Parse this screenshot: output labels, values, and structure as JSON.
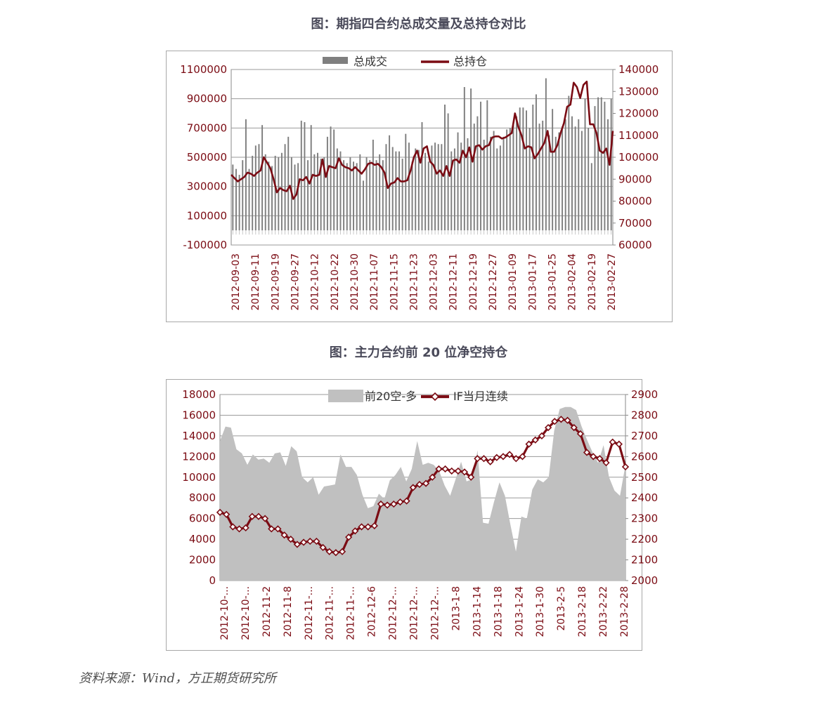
{
  "titles": {
    "chart1": "图：期指四合约总成交量及总持仓对比",
    "chart2": "图：主力合约前 20 位净空持仓"
  },
  "source": "资料来源：Wind，方正期货研究所",
  "colors": {
    "dark_red": "#7b0c14",
    "volume_bar": "#7f7f7f",
    "net_short_area": "#c0c0c0",
    "axis_text": "#7b0c14",
    "title_text": "#4a4a5a"
  },
  "chart_data": [
    {
      "type": "bar",
      "title": "图：期指四合约总成交量及总持仓对比",
      "legend_position": "top",
      "grid": true,
      "left_axis": {
        "ylim": [
          -100000,
          1100000
        ],
        "ticks": [
          "-100000",
          "100000",
          "300000",
          "500000",
          "700000",
          "900000",
          "1100000"
        ]
      },
      "right_axis": {
        "ylim": [
          60000,
          140000
        ],
        "ticks": [
          "60000",
          "70000",
          "80000",
          "90000",
          "100000",
          "110000",
          "120000",
          "130000",
          "140000"
        ]
      },
      "x_tick_labels": [
        "2012-09-03",
        "2012-09-11",
        "2012-09-19",
        "2012-09-27",
        "2012-10-12",
        "2012-10-22",
        "2012-10-30",
        "2012-11-07",
        "2012-11-15",
        "2012-11-23",
        "2012-12-03",
        "2012-12-11",
        "2012-12-19",
        "2012-12-27",
        "2013-01-09",
        "2013-01-17",
        "2013-01-25",
        "2013-02-04",
        "2013-02-19",
        "2013-02-27"
      ],
      "series": [
        {
          "name": "总成交",
          "type": "bar",
          "axis": "left",
          "values": [
            450000,
            420000,
            380000,
            480000,
            760000,
            420000,
            510000,
            580000,
            590000,
            720000,
            520000,
            470000,
            440000,
            510000,
            500000,
            530000,
            590000,
            640000,
            500000,
            450000,
            460000,
            750000,
            740000,
            480000,
            720000,
            520000,
            530000,
            490000,
            500000,
            640000,
            710000,
            690000,
            560000,
            540000,
            480000,
            460000,
            500000,
            470000,
            460000,
            520000,
            340000,
            500000,
            480000,
            620000,
            480000,
            520000,
            480000,
            590000,
            650000,
            570000,
            540000,
            540000,
            490000,
            660000,
            600000,
            470000,
            560000,
            550000,
            740000,
            530000,
            470000,
            580000,
            600000,
            590000,
            590000,
            860000,
            800000,
            540000,
            560000,
            670000,
            600000,
            980000,
            630000,
            970000,
            730000,
            780000,
            880000,
            620000,
            890000,
            640000,
            680000,
            560000,
            580000,
            640000,
            690000,
            700000,
            720000,
            780000,
            840000,
            840000,
            820000,
            700000,
            860000,
            930000,
            730000,
            750000,
            1040000,
            650000,
            830000,
            640000,
            670000,
            710000,
            760000,
            920000,
            780000,
            710000,
            760000,
            680000,
            900000,
            700000,
            460000,
            850000,
            910000,
            910000,
            880000,
            760000,
            900000
          ]
        },
        {
          "name": "总持仓",
          "type": "line",
          "axis": "right",
          "values": [
            92000,
            90500,
            89000,
            90000,
            91000,
            93000,
            92500,
            91500,
            93000,
            94000,
            100000,
            97500,
            95000,
            90000,
            84000,
            86000,
            85000,
            84500,
            87000,
            81000,
            83000,
            90000,
            89500,
            91000,
            88000,
            92000,
            91500,
            92000,
            99000,
            91000,
            96000,
            95500,
            95000,
            99500,
            96500,
            95500,
            95000,
            94000,
            95500,
            94000,
            92500,
            94500,
            97000,
            97500,
            96500,
            97000,
            95500,
            93000,
            86000,
            88000,
            88500,
            90500,
            89000,
            89000,
            89500,
            94000,
            100000,
            103000,
            97500,
            104000,
            105000,
            98000,
            96500,
            92500,
            94000,
            91500,
            96000,
            91500,
            98500,
            99000,
            97500,
            103000,
            100000,
            104500,
            98000,
            105000,
            105500,
            103500,
            105000,
            105500,
            109000,
            109500,
            109500,
            108500,
            109000,
            110000,
            111000,
            120000,
            114000,
            110000,
            104000,
            105000,
            104500,
            99500,
            101500,
            104000,
            106500,
            112000,
            102500,
            102500,
            105500,
            111000,
            115500,
            123000,
            124000,
            134000,
            132000,
            127000,
            133000,
            134500,
            115000,
            115000,
            111000,
            103000,
            102000,
            104000,
            96500,
            112000
          ]
        }
      ]
    },
    {
      "type": "area",
      "title": "图：主力合约前 20 位净空持仓",
      "legend_position": "top",
      "grid": true,
      "left_axis": {
        "ylim": [
          0,
          18000
        ],
        "ticks": [
          "0",
          "2000",
          "4000",
          "6000",
          "8000",
          "10000",
          "12000",
          "14000",
          "16000",
          "18000"
        ]
      },
      "right_axis": {
        "ylim": [
          2000,
          2900
        ],
        "ticks": [
          "2000",
          "2100",
          "2200",
          "2300",
          "2400",
          "2500",
          "2600",
          "2700",
          "2800",
          "2900"
        ]
      },
      "x_tick_labels": [
        "2012-10-...",
        "2012-10-...",
        "2012-11-2",
        "2012-11-8",
        "2012-11-...",
        "2012-11-...",
        "2012-11-...",
        "2012-12-6",
        "2012-12-...",
        "2012-12-...",
        "2012-12-...",
        "2013-1-8",
        "2013-1-14",
        "2013-1-18",
        "2013-1-24",
        "2013-1-30",
        "2013-2-5",
        "2013-2-18",
        "2013-2-22",
        "2013-2-28"
      ],
      "series": [
        {
          "name": "前20空-多",
          "type": "area",
          "axis": "left",
          "values": [
            13500,
            14900,
            14800,
            12700,
            12300,
            11200,
            12200,
            11700,
            11800,
            11400,
            12300,
            12400,
            11100,
            13000,
            12500,
            10000,
            9500,
            10000,
            8300,
            9100,
            9200,
            9300,
            12200,
            11000,
            11000,
            10200,
            8300,
            7000,
            7200,
            8400,
            7900,
            9700,
            10200,
            11000,
            9600,
            10800,
            13500,
            11200,
            11400,
            11200,
            10600,
            9200,
            8200,
            9800,
            11500,
            9600,
            9800,
            12600,
            5600,
            5500,
            7600,
            9500,
            8200,
            5400,
            2800,
            6200,
            6000,
            8800,
            9800,
            9500,
            10000,
            14500,
            16600,
            16800,
            16800,
            16500,
            14900,
            13600,
            12400,
            11400,
            13100,
            10000,
            8700,
            8200,
            11200
          ]
        },
        {
          "name": "IF当月连续",
          "type": "line",
          "axis": "right",
          "values": [
            2330,
            2320,
            2260,
            2250,
            2255,
            2310,
            2310,
            2300,
            2250,
            2250,
            2220,
            2200,
            2175,
            2185,
            2190,
            2190,
            2160,
            2140,
            2135,
            2140,
            2210,
            2240,
            2260,
            2260,
            2265,
            2370,
            2365,
            2370,
            2380,
            2385,
            2450,
            2465,
            2470,
            2500,
            2540,
            2540,
            2530,
            2530,
            2525,
            2500,
            2590,
            2590,
            2575,
            2595,
            2600,
            2610,
            2590,
            2600,
            2660,
            2680,
            2700,
            2740,
            2770,
            2780,
            2775,
            2740,
            2710,
            2620,
            2600,
            2590,
            2570,
            2670,
            2660,
            2550
          ]
        }
      ]
    }
  ]
}
